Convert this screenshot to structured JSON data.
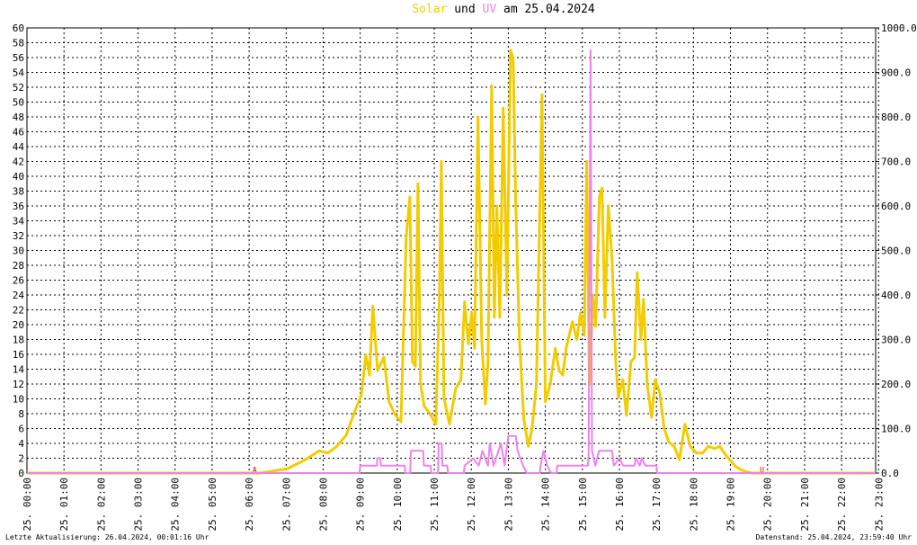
{
  "chart_data": {
    "type": "line",
    "title_parts": [
      "und",
      "am 25.04.2024"
    ],
    "xlim": [
      0,
      22.92
    ],
    "xticks": [
      {
        "value": 0,
        "label": "25. 00:00"
      },
      {
        "value": 1,
        "label": "25. 01:00"
      },
      {
        "value": 2,
        "label": "25. 02:00"
      },
      {
        "value": 3,
        "label": "25. 03:00"
      },
      {
        "value": 4,
        "label": "25. 04:00"
      },
      {
        "value": 5,
        "label": "25. 05:00"
      },
      {
        "value": 6,
        "label": "25. 06:00"
      },
      {
        "value": 7,
        "label": "25. 07:00"
      },
      {
        "value": 8,
        "label": "25. 08:00"
      },
      {
        "value": 9,
        "label": "25. 09:00"
      },
      {
        "value": 10,
        "label": "25. 10:00"
      },
      {
        "value": 11,
        "label": "25. 11:00"
      },
      {
        "value": 12,
        "label": "25. 12:00"
      },
      {
        "value": 13,
        "label": "25. 13:00"
      },
      {
        "value": 14,
        "label": "25. 14:00"
      },
      {
        "value": 15,
        "label": "25. 15:00"
      },
      {
        "value": 16,
        "label": "25. 16:00"
      },
      {
        "value": 17,
        "label": "25. 17:00"
      },
      {
        "value": 18,
        "label": "25. 18:00"
      },
      {
        "value": 19,
        "label": "25. 19:00"
      },
      {
        "value": 20,
        "label": "25. 20:00"
      },
      {
        "value": 21,
        "label": "25. 21:00"
      },
      {
        "value": 22,
        "label": "25. 22:00"
      },
      {
        "value": 23,
        "label": "25. 23:00"
      }
    ],
    "ylim": [
      0,
      60
    ],
    "yticks": [
      0,
      2,
      4,
      6,
      8,
      10,
      12,
      14,
      16,
      18,
      20,
      22,
      24,
      26,
      28,
      30,
      32,
      34,
      36,
      38,
      40,
      42,
      44,
      46,
      48,
      50,
      52,
      54,
      56,
      58,
      60
    ],
    "y2lim": [
      0,
      1000
    ],
    "y2ticks": [
      {
        "value": 0,
        "label": "0.0"
      },
      {
        "value": 100,
        "label": "100.0"
      },
      {
        "value": 200,
        "label": "200.0"
      },
      {
        "value": 300,
        "label": "300.0"
      },
      {
        "value": 400,
        "label": "400.0"
      },
      {
        "value": 500,
        "label": "500.0"
      },
      {
        "value": 600,
        "label": "600.0"
      },
      {
        "value": 700,
        "label": "700.0"
      },
      {
        "value": 800,
        "label": "800.0"
      },
      {
        "value": 900,
        "label": "900.0"
      },
      {
        "value": 1000,
        "label": "1000.0"
      }
    ],
    "grid": true,
    "series": [
      {
        "name": "Solar",
        "color": "#f2cc00",
        "axis": "y2",
        "x": [
          0,
          6.31,
          6.55,
          7.04,
          7.52,
          7.89,
          8.13,
          8.37,
          8.62,
          8.86,
          9.03,
          9.15,
          9.25,
          9.34,
          9.47,
          9.64,
          9.78,
          9.95,
          10.1,
          10.24,
          10.34,
          10.41,
          10.49,
          10.56,
          10.63,
          10.73,
          10.87,
          11.04,
          11.14,
          11.19,
          11.26,
          11.41,
          11.58,
          11.72,
          11.82,
          11.92,
          12.01,
          12.09,
          12.18,
          12.28,
          12.38,
          12.45,
          12.55,
          12.62,
          12.69,
          12.77,
          12.86,
          12.96,
          13.06,
          13.13,
          13.2,
          13.3,
          13.42,
          13.54,
          13.64,
          13.76,
          13.91,
          14.0,
          14.13,
          14.27,
          14.37,
          14.47,
          14.56,
          14.73,
          14.85,
          14.95,
          15.05,
          15.12,
          15.19,
          15.29,
          15.36,
          15.46,
          15.53,
          15.61,
          15.7,
          15.8,
          15.9,
          15.97,
          16.09,
          16.19,
          16.31,
          16.41,
          16.48,
          16.58,
          16.65,
          16.75,
          16.87,
          16.97,
          17.09,
          17.21,
          17.33,
          17.48,
          17.62,
          17.77,
          17.91,
          18.08,
          18.25,
          18.4,
          18.57,
          18.71,
          18.83,
          18.98,
          19.13,
          19.27,
          19.42,
          19.56,
          22.92
        ],
        "values": [
          0,
          0,
          3,
          10,
          30,
          50,
          45,
          60,
          85,
          140,
          175,
          265,
          220,
          375,
          230,
          260,
          160,
          130,
          115,
          530,
          620,
          250,
          240,
          650,
          200,
          150,
          135,
          110,
          400,
          700,
          170,
          110,
          190,
          210,
          385,
          290,
          360,
          280,
          800,
          300,
          155,
          250,
          870,
          350,
          600,
          350,
          820,
          400,
          950,
          930,
          600,
          300,
          120,
          60,
          100,
          200,
          850,
          160,
          200,
          280,
          230,
          220,
          280,
          340,
          300,
          360,
          310,
          700,
          200,
          400,
          330,
          620,
          640,
          350,
          600,
          480,
          250,
          170,
          210,
          130,
          250,
          260,
          450,
          300,
          390,
          200,
          125,
          210,
          180,
          100,
          70,
          60,
          30,
          110,
          60,
          45,
          45,
          60,
          55,
          60,
          45,
          30,
          15,
          8,
          3,
          0,
          0
        ]
      },
      {
        "name": "UV",
        "color": "#ee82ee",
        "axis": "y",
        "x": [
          0,
          8.98,
          9.0,
          9.45,
          9.46,
          9.55,
          9.56,
          10.2,
          10.22,
          10.35,
          10.37,
          10.7,
          10.72,
          10.9,
          10.92,
          11.1,
          11.12,
          11.2,
          11.22,
          11.35,
          11.37,
          11.8,
          11.82,
          12.05,
          12.2,
          12.3,
          12.45,
          12.5,
          12.6,
          12.8,
          12.9,
          13.0,
          13.2,
          13.25,
          13.4,
          13.5,
          13.85,
          13.87,
          13.95,
          14.05,
          14.15,
          14.3,
          14.32,
          15.15,
          15.17,
          15.22,
          15.26,
          15.35,
          15.45,
          15.8,
          15.85,
          16.0,
          16.1,
          16.4,
          16.45,
          16.55,
          16.6,
          16.7,
          17.0,
          17.02,
          22.92
        ],
        "values": [
          0,
          0,
          1,
          1,
          2,
          2,
          1,
          1,
          0,
          0,
          3,
          3,
          1,
          1,
          0,
          0,
          4,
          4,
          1,
          1,
          0,
          0,
          1,
          2,
          1,
          3,
          1,
          4,
          1,
          4,
          1,
          5,
          5,
          3,
          1,
          0,
          0,
          1,
          3,
          1,
          0,
          0,
          1,
          1,
          3,
          57,
          3,
          1,
          3,
          3,
          1,
          2,
          1,
          1,
          2,
          1,
          2,
          1,
          1,
          0,
          0
        ]
      }
    ],
    "annotations": [
      {
        "x": 6.15,
        "text": "A"
      },
      {
        "x": 19.85,
        "text": "U"
      }
    ],
    "footer_left": "Letzte Aktualisierung: 26.04.2024, 00:01:16 Uhr",
    "footer_right": "Datenstand: 25.04.2024, 23:59:40 Uhr"
  }
}
